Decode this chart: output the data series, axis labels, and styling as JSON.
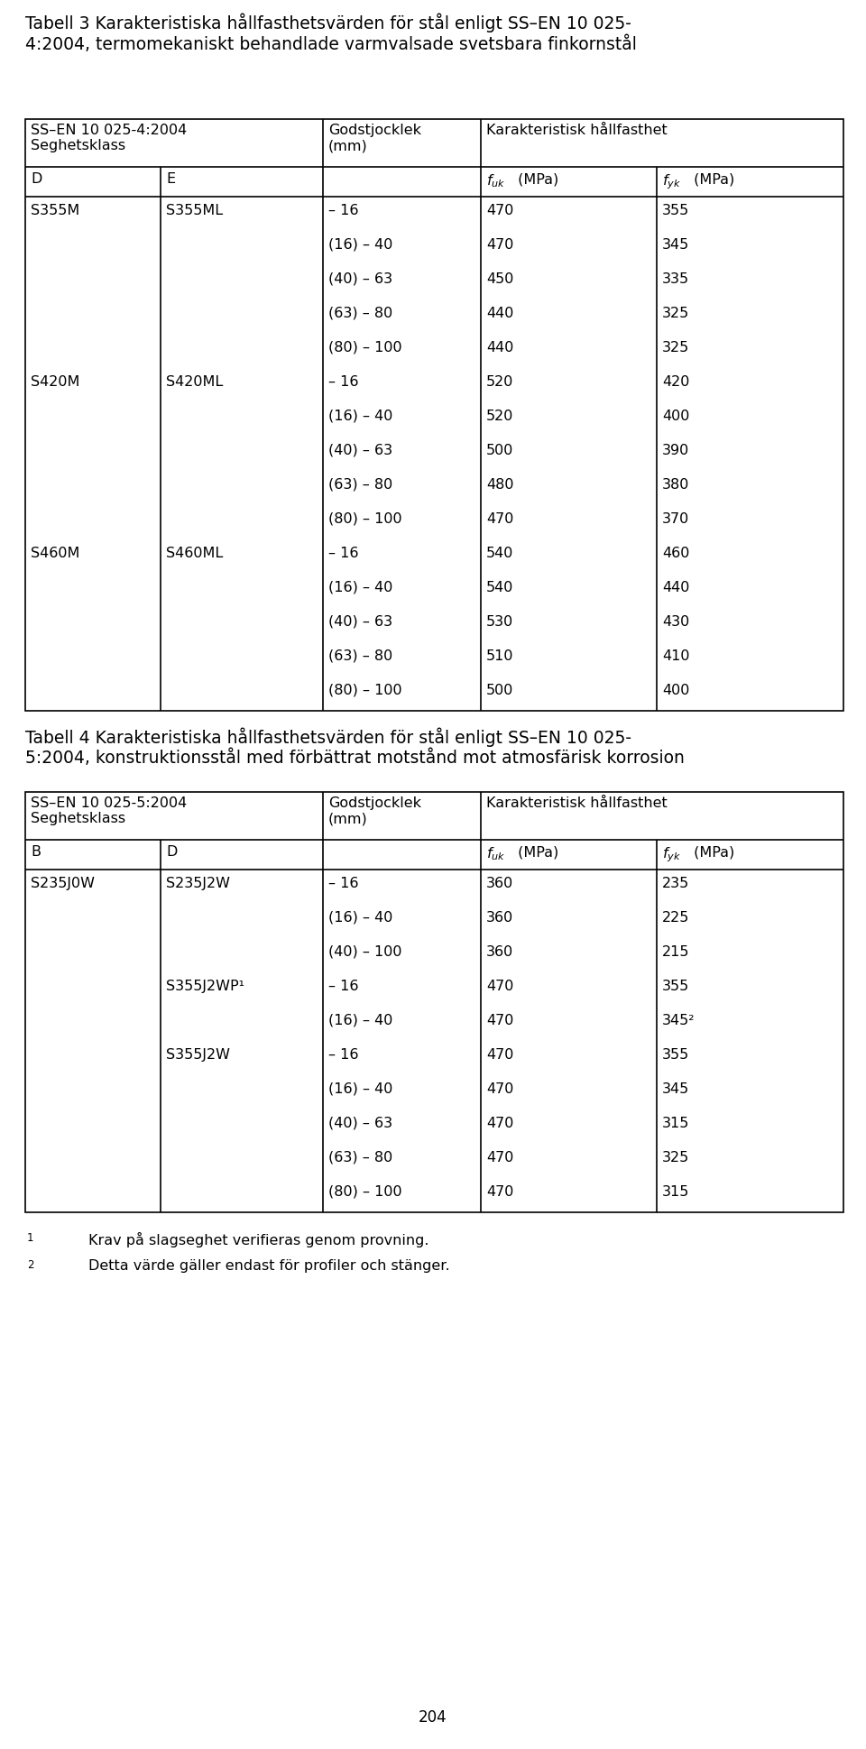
{
  "title3": "Tabell 3 Karakteristiska hållfasthetsvärden för stål enligt SS–EN 10 025-\n4:2004, termomekaniskt behandlade varmvalsade svetsbara finkornstål",
  "title4": "Tabell 4 Karakteristiska hållfasthetsvärden för stål enligt SS–EN 10 025-\n5:2004, konstruktionsstål med förbättrat motstånd mot atmosfärisk korrosion",
  "header3_col1": "SS–EN 10 025-4:2004\nSeghetsklass",
  "header3_col2": "Godstjocklek\n(mm)",
  "header3_col3": "Karakteristisk hållfasthet",
  "subheader3_D": "D",
  "subheader3_E": "E",
  "header4_col1": "SS–EN 10 025-5:2004\nSeghetsklass",
  "header4_col2": "Godstjocklek\n(mm)",
  "header4_col3": "Karakteristisk hållfasthet",
  "subheader4_B": "B",
  "subheader4_D": "D",
  "table3_data": [
    [
      "S355M",
      "S355ML",
      "– 16",
      "470",
      "355"
    ],
    [
      "",
      "",
      "(16) – 40",
      "470",
      "345"
    ],
    [
      "",
      "",
      "(40) – 63",
      "450",
      "335"
    ],
    [
      "",
      "",
      "(63) – 80",
      "440",
      "325"
    ],
    [
      "",
      "",
      "(80) – 100",
      "440",
      "325"
    ],
    [
      "S420M",
      "S420ML",
      "– 16",
      "520",
      "420"
    ],
    [
      "",
      "",
      "(16) – 40",
      "520",
      "400"
    ],
    [
      "",
      "",
      "(40) – 63",
      "500",
      "390"
    ],
    [
      "",
      "",
      "(63) – 80",
      "480",
      "380"
    ],
    [
      "",
      "",
      "(80) – 100",
      "470",
      "370"
    ],
    [
      "S460M",
      "S460ML",
      "– 16",
      "540",
      "460"
    ],
    [
      "",
      "",
      "(16) – 40",
      "540",
      "440"
    ],
    [
      "",
      "",
      "(40) – 63",
      "530",
      "430"
    ],
    [
      "",
      "",
      "(63) – 80",
      "510",
      "410"
    ],
    [
      "",
      "",
      "(80) – 100",
      "500",
      "400"
    ]
  ],
  "table4_data": [
    [
      "S235J0W",
      "S235J2W",
      "– 16",
      "360",
      "235"
    ],
    [
      "",
      "",
      "(16) – 40",
      "360",
      "225"
    ],
    [
      "",
      "",
      "(40) – 100",
      "360",
      "215"
    ],
    [
      "",
      "S355J2WP¹",
      "– 16",
      "470",
      "355"
    ],
    [
      "",
      "",
      "(16) – 40",
      "470",
      "345²"
    ],
    [
      "",
      "S355J2W",
      "– 16",
      "470",
      "355"
    ],
    [
      "",
      "",
      "(16) – 40",
      "470",
      "345"
    ],
    [
      "",
      "",
      "(40) – 63",
      "470",
      "315"
    ],
    [
      "",
      "",
      "(63) – 80",
      "470",
      "325"
    ],
    [
      "",
      "",
      "(80) – 100",
      "470",
      "315"
    ]
  ],
  "footnote1_super": "1",
  "footnote1_text": "Krav på slagseghet verifieras genom provning.",
  "footnote2_super": "2",
  "footnote2_text": "Detta värde gäller endast för profiler och stänger.",
  "page_number": "204",
  "bg_color": "#ffffff",
  "text_color": "#000000"
}
